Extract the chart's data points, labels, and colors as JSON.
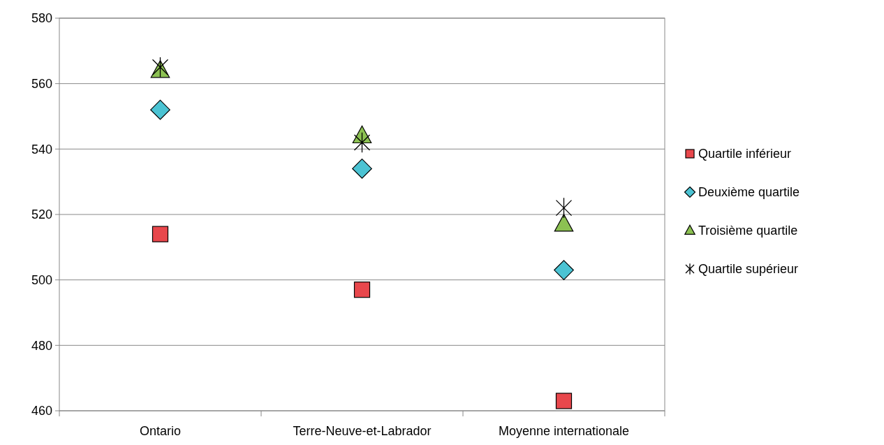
{
  "chart_data": {
    "type": "scatter",
    "categories": [
      "Ontario",
      "Terre-Neuve-et-Labrador",
      "Moyenne internationale"
    ],
    "ylim": [
      460,
      580
    ],
    "yticks": [
      460,
      480,
      500,
      520,
      540,
      560,
      580
    ],
    "grid": "y",
    "legend": "right",
    "series": [
      {
        "name": "Quartile inférieur",
        "color": "#e8474c",
        "marker": "square",
        "values": [
          514,
          497,
          463
        ]
      },
      {
        "name": "Deuxième quartile",
        "color": "#4bc3d3",
        "marker": "diamond",
        "values": [
          552,
          534,
          503
        ]
      },
      {
        "name": "Troisième quartile",
        "color": "#8cc152",
        "marker": "triangle",
        "values": [
          564,
          544,
          517
        ]
      },
      {
        "name": "Quartile supérieur",
        "color": "#000000",
        "marker": "cross",
        "values": [
          565,
          542,
          522
        ]
      }
    ]
  }
}
